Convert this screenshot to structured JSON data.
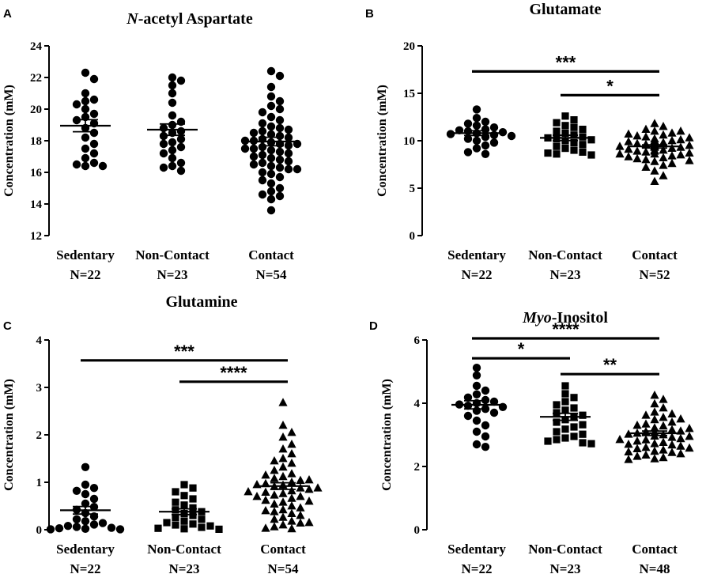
{
  "chart_data": [
    {
      "panel": "A",
      "type": "scatter",
      "title_italic": "N",
      "title_rest": "-acetyl Aspartate",
      "ylabel": "Concentration (mM)",
      "ylim": [
        12,
        24
      ],
      "yticks": [
        12,
        14,
        16,
        18,
        20,
        22,
        24
      ],
      "categories": [
        {
          "name": "Sedentary",
          "n": "N=22"
        },
        {
          "name": "Non-Contact",
          "n": "N=23"
        },
        {
          "name": "Contact",
          "n": "N=54"
        }
      ],
      "marker": [
        "circle",
        "circle",
        "circle"
      ],
      "means": [
        18.95,
        18.7,
        17.95
      ],
      "sem": [
        0.38,
        0.36,
        0.27
      ],
      "points": [
        [
          22.3,
          21.9,
          21.0,
          20.6,
          20.5,
          20.3,
          20.0,
          19.7,
          19.5,
          19.3,
          19.1,
          18.8,
          18.5,
          18.2,
          17.8,
          17.5,
          17.2,
          16.9,
          16.6,
          16.5,
          16.4,
          16.4
        ],
        [
          22.0,
          21.8,
          21.5,
          21.0,
          20.4,
          19.6,
          19.2,
          19.0,
          18.8,
          18.6,
          18.5,
          18.3,
          18.1,
          17.9,
          17.8,
          17.6,
          17.4,
          17.2,
          16.9,
          16.6,
          16.4,
          16.3,
          16.1
        ],
        [
          22.4,
          22.1,
          21.4,
          20.8,
          20.5,
          20.2,
          20.0,
          19.8,
          19.5,
          19.3,
          19.1,
          18.9,
          18.8,
          18.7,
          18.6,
          18.5,
          18.4,
          18.3,
          18.2,
          18.1,
          18.0,
          17.9,
          17.8,
          17.8,
          17.7,
          17.6,
          17.5,
          17.4,
          17.3,
          17.2,
          17.1,
          17.0,
          16.9,
          16.8,
          16.7,
          16.6,
          16.5,
          16.4,
          16.3,
          16.2,
          16.0,
          15.9,
          15.7,
          15.5,
          15.3,
          15.0,
          14.8,
          14.6,
          14.5,
          14.3,
          16.2,
          17.5,
          18.0,
          13.6
        ]
      ],
      "significance": []
    },
    {
      "panel": "B",
      "type": "scatter",
      "title_italic": "",
      "title_rest": "Glutamate",
      "ylabel": "Concentration (mM)",
      "ylim": [
        0,
        20
      ],
      "yticks": [
        0,
        5,
        10,
        15,
        20
      ],
      "categories": [
        {
          "name": "Sedentary",
          "n": "N=22"
        },
        {
          "name": "Non-Contact",
          "n": "N=23"
        },
        {
          "name": "Contact",
          "n": "N=52"
        }
      ],
      "marker": [
        "circle",
        "square",
        "triangle"
      ],
      "means": [
        10.8,
        10.3,
        9.4
      ],
      "sem": [
        0.25,
        0.28,
        0.17
      ],
      "points": [
        [
          13.3,
          12.4,
          12.0,
          11.8,
          11.6,
          11.4,
          11.2,
          11.1,
          11.0,
          10.9,
          10.8,
          10.7,
          10.6,
          10.5,
          10.4,
          10.2,
          10.0,
          9.8,
          9.5,
          9.2,
          8.8,
          8.6
        ],
        [
          12.6,
          12.2,
          11.9,
          11.6,
          11.4,
          11.2,
          11.0,
          10.8,
          10.6,
          10.4,
          10.3,
          10.2,
          10.1,
          10.0,
          9.8,
          9.6,
          9.4,
          9.2,
          9.0,
          8.8,
          8.7,
          8.6,
          8.5
        ],
        [
          11.8,
          11.5,
          11.2,
          11.0,
          10.8,
          10.6,
          10.5,
          10.4,
          10.2,
          10.1,
          10.0,
          9.9,
          9.8,
          9.7,
          9.6,
          9.5,
          9.4,
          9.4,
          9.3,
          9.2,
          9.1,
          9.0,
          8.9,
          8.8,
          8.7,
          8.6,
          8.5,
          8.4,
          8.3,
          8.2,
          8.0,
          7.8,
          7.6,
          7.4,
          7.2,
          6.8,
          6.3,
          5.7,
          9.6,
          9.0,
          10.3,
          9.9,
          8.9,
          9.3,
          10.7,
          11.0,
          8.1,
          9.5,
          9.7,
          8.6,
          7.9,
          10.0
        ]
      ],
      "significance": [
        {
          "from": 0,
          "to": 2,
          "label": "***",
          "y": 17.3
        },
        {
          "from": 1,
          "to": 2,
          "label": "*",
          "y": 14.8
        }
      ]
    },
    {
      "panel": "C",
      "type": "scatter",
      "title_italic": "",
      "title_rest": "Glutamine",
      "ylabel": "Concentration (mM)",
      "ylim": [
        0,
        4
      ],
      "yticks": [
        0,
        1,
        2,
        3,
        4
      ],
      "categories": [
        {
          "name": "Sedentary",
          "n": "N=22"
        },
        {
          "name": "Non-Contact",
          "n": "N=23"
        },
        {
          "name": "Contact",
          "n": "N=54"
        }
      ],
      "marker": [
        "circle",
        "square",
        "triangle"
      ],
      "means": [
        0.41,
        0.38,
        0.92
      ],
      "sem": [
        0.08,
        0.06,
        0.07
      ],
      "points": [
        [
          1.32,
          0.95,
          0.88,
          0.82,
          0.75,
          0.65,
          0.55,
          0.48,
          0.42,
          0.35,
          0.28,
          0.22,
          0.18,
          0.14,
          0.11,
          0.08,
          0.06,
          0.04,
          0.03,
          0.02,
          0.01,
          0.01
        ],
        [
          0.95,
          0.88,
          0.8,
          0.72,
          0.65,
          0.58,
          0.52,
          0.46,
          0.42,
          0.38,
          0.34,
          0.3,
          0.26,
          0.22,
          0.18,
          0.15,
          0.12,
          0.1,
          0.08,
          0.05,
          0.03,
          0.02,
          0.01
        ],
        [
          2.68,
          2.2,
          2.05,
          1.95,
          1.8,
          1.7,
          1.6,
          1.5,
          1.4,
          1.32,
          1.25,
          1.18,
          1.12,
          1.08,
          1.04,
          1.0,
          0.97,
          0.94,
          0.91,
          0.88,
          0.85,
          0.82,
          0.79,
          0.76,
          0.73,
          0.7,
          0.66,
          0.62,
          0.58,
          0.54,
          0.5,
          0.46,
          0.42,
          0.38,
          0.34,
          0.3,
          0.26,
          0.22,
          0.18,
          0.14,
          0.1,
          0.06,
          0.03,
          0.02,
          0.95,
          0.88,
          1.15,
          0.7,
          0.6,
          1.45,
          0.8,
          1.05,
          0.4,
          0.15
        ]
      ],
      "significance": [
        {
          "from": 0,
          "to": 2,
          "label": "***",
          "y": 3.57
        },
        {
          "from": 1,
          "to": 2,
          "label": "****",
          "y": 3.12
        }
      ]
    },
    {
      "panel": "D",
      "type": "scatter",
      "title_italic": "Myo",
      "title_rest": "-Inositol",
      "ylabel": "Concentration (mM)",
      "ylim": [
        0,
        6
      ],
      "yticks": [
        0,
        2,
        4,
        6
      ],
      "categories": [
        {
          "name": "Sedentary",
          "n": "N=22"
        },
        {
          "name": "Non-Contact",
          "n": "N=23"
        },
        {
          "name": "Contact",
          "n": "N=48"
        }
      ],
      "marker": [
        "circle",
        "square",
        "triangle"
      ],
      "means": [
        3.95,
        3.57,
        3.05
      ],
      "sem": [
        0.13,
        0.11,
        0.07
      ],
      "points": [
        [
          5.12,
          4.88,
          4.55,
          4.4,
          4.28,
          4.18,
          4.1,
          4.05,
          4.0,
          3.96,
          3.92,
          3.88,
          3.82,
          3.76,
          3.7,
          3.6,
          3.45,
          3.3,
          3.1,
          2.95,
          2.7,
          2.62
        ],
        [
          4.55,
          4.3,
          4.18,
          4.05,
          3.95,
          3.85,
          3.78,
          3.7,
          3.62,
          3.55,
          3.48,
          3.4,
          3.32,
          3.25,
          3.18,
          3.1,
          3.02,
          2.95,
          2.9,
          2.85,
          2.8,
          2.75,
          2.72
        ],
        [
          4.25,
          4.12,
          3.98,
          3.85,
          3.72,
          3.62,
          3.55,
          3.48,
          3.4,
          3.34,
          3.28,
          3.22,
          3.16,
          3.1,
          3.05,
          3.0,
          2.96,
          2.92,
          2.88,
          2.84,
          2.8,
          2.76,
          2.72,
          2.68,
          2.64,
          2.6,
          2.56,
          2.52,
          2.48,
          2.44,
          2.4,
          2.36,
          2.32,
          2.28,
          2.24,
          2.22,
          3.02,
          3.12,
          2.7,
          3.3,
          3.5,
          2.95,
          2.58,
          3.2,
          3.66,
          2.85,
          3.08,
          2.46
        ]
      ],
      "significance": [
        {
          "from": 0,
          "to": 2,
          "label": "****",
          "y": 6.05
        },
        {
          "from": 0,
          "to": 1,
          "label": "*",
          "y": 5.42
        },
        {
          "from": 1,
          "to": 2,
          "label": "**",
          "y": 4.92
        }
      ]
    }
  ]
}
